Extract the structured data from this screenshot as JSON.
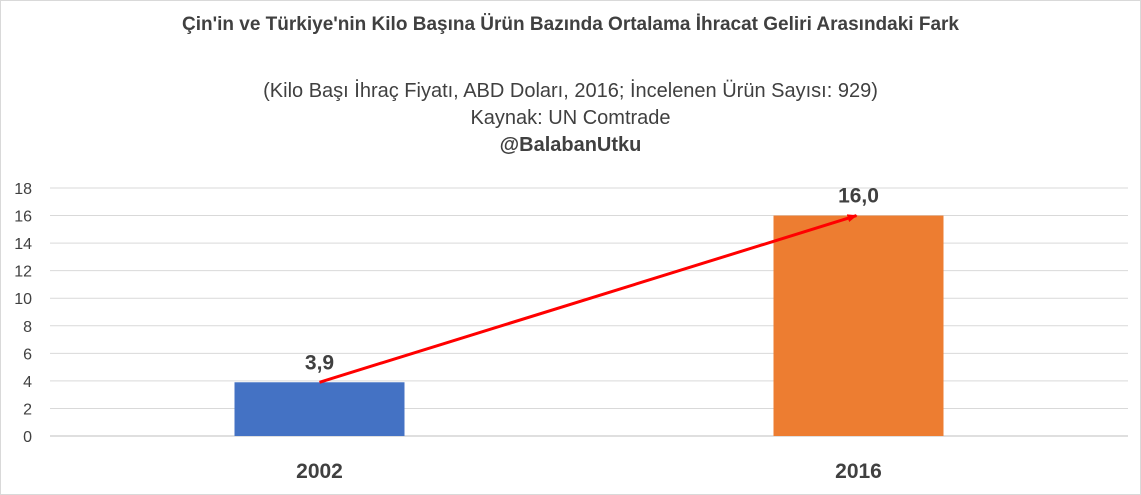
{
  "chart_data": {
    "type": "bar",
    "title": "Çin'in ve Türkiye'nin Kilo Başına Ürün Bazında Ortalama İhracat Geliri Arasındaki Fark",
    "subtitle_lines": [
      "(Kilo Başı İhraç Fiyatı, ABD Doları, 2016; İncelenen Ürün Sayısı: 929)",
      "Kaynak: UN Comtrade"
    ],
    "credit": "@BalabanUtku",
    "categories": [
      "2002",
      "2016"
    ],
    "values": [
      3.9,
      16.0
    ],
    "data_labels": [
      "3,9",
      "16,0"
    ],
    "bar_colors": [
      "#4472c4",
      "#ed7d31"
    ],
    "arrow_color": "#ff0000",
    "ylim": [
      0,
      18
    ],
    "yticks": [
      0,
      2,
      4,
      6,
      8,
      10,
      12,
      14,
      16,
      18
    ],
    "grid": true,
    "xlabel": "",
    "ylabel": ""
  }
}
